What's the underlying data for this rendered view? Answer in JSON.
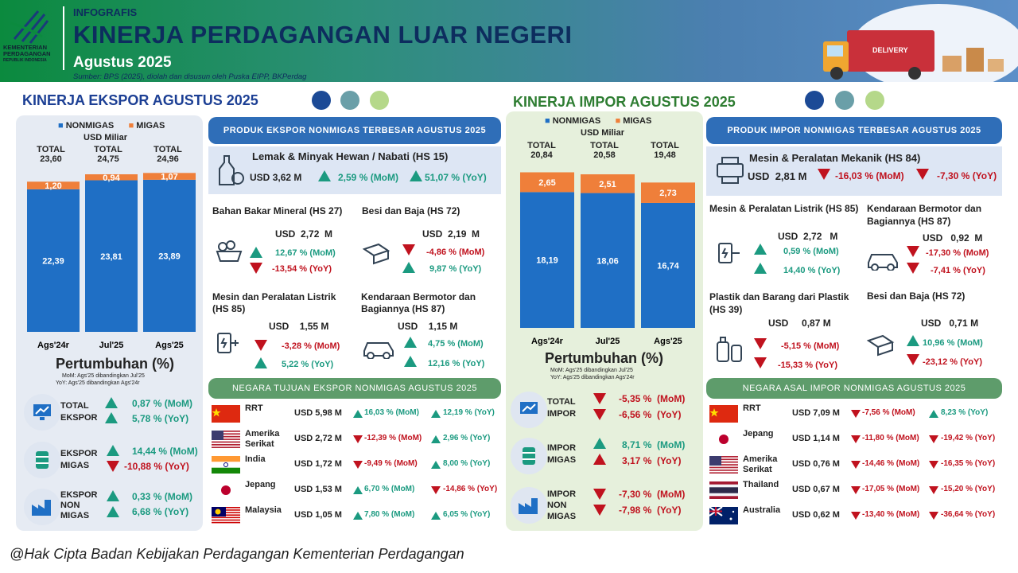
{
  "header": {
    "kicker": "INFOGRAFIS",
    "title": "KINERJA PERDAGANGAN LUAR NEGERI",
    "month": "Agustus 2025",
    "source": "Sumber: BPS (2025), diolah dan disusun oleh Puska EIPP, BKPerdag",
    "logo_line1": "KEMENTERIAN",
    "logo_line2": "PERDAGANGAN",
    "logo_line3": "REPUBLIK INDONESIA",
    "truck_text": "DELIVERY"
  },
  "export": {
    "title": "KINERJA EKSPOR AGUSTUS 2025",
    "legend_nonmigas": "NONMIGAS",
    "legend_migas": "MIGAS",
    "unit": "USD Miliar",
    "totals": [
      {
        "label": "TOTAL",
        "value": "23,60"
      },
      {
        "label": "TOTAL",
        "value": "24,75"
      },
      {
        "label": "TOTAL",
        "value": "24,96"
      }
    ],
    "growth_title": "Pertumbuhan (%)",
    "growth_note1": "MoM: Ags'25 dibandingkan Jul'25",
    "growth_note2": "YoY: Ags'25 dibandingkan Ags'24r",
    "growth": [
      {
        "label1": "TOTAL",
        "label2": "EKSPOR",
        "label3": "",
        "mom": "0,87 %",
        "mom_tag": "(MoM)",
        "yoy": "5,78 %",
        "yoy_tag": "(YoY)"
      },
      {
        "label1": "EKSPOR",
        "label2": "MIGAS",
        "label3": "",
        "mom": "14,44 %",
        "mom_tag": "(MoM)",
        "yoy": "-10,88 %",
        "yoy_tag": "(YoY)"
      },
      {
        "label1": "EKSPOR",
        "label2": "NON",
        "label3": "MIGAS",
        "mom": "0,33 %",
        "mom_tag": "(MoM)",
        "yoy": "6,68 %",
        "yoy_tag": "(YoY)"
      }
    ],
    "products_header": "PRODUK EKSPOR NONMIGAS TERBESAR AGUSTUS 2025",
    "top_product": {
      "name": "Lemak & Minyak Hewan / Nabati (HS 15)",
      "usd": "USD",
      "value": "3,62 M",
      "mom": "2,59 % (MoM)",
      "yoy": "51,07 % (YoY)"
    },
    "products": [
      {
        "name": "Bahan Bakar Mineral (HS 27)",
        "usd": "USD",
        "value": "2,72",
        "unit": "M",
        "mom": "12,67 % (MoM)",
        "yoy": "-13,54 % (YoY)"
      },
      {
        "name": "Besi dan Baja (HS 72)",
        "usd": "USD",
        "value": "2,19",
        "unit": "M",
        "mom": "-4,86 % (MoM)",
        "yoy": "9,87 % (YoY)"
      },
      {
        "name": "Mesin dan Peralatan Listrik (HS 85)",
        "usd": "USD",
        "value": "1,55",
        "unit": "M",
        "mom": "-3,28 % (MoM)",
        "yoy": "5,22 % (YoY)"
      },
      {
        "name": "Kendaraan Bermotor dan Bagiannya (HS 87)",
        "usd": "USD",
        "value": "1,15",
        "unit": "M",
        "mom": "4,75 % (MoM)",
        "yoy": "12,16 % (YoY)"
      }
    ],
    "countries_header": "NEGARA TUJUAN EKSPOR NONMIGAS AGUSTUS 2025",
    "countries": [
      {
        "name": "RRT",
        "value": "USD 5,98 M",
        "mom": "16,03 % (MoM)",
        "yoy": "12,19 % (YoY)"
      },
      {
        "name": "Amerika Serikat",
        "value": "USD 2,72 M",
        "mom": "-12,39 % (MoM)",
        "yoy": "2,96 % (YoY)"
      },
      {
        "name": "India",
        "value": "USD 1,72 M",
        "mom": "-9,49 % (MoM)",
        "yoy": "8,00 % (YoY)"
      },
      {
        "name": "Jepang",
        "value": "USD 1,53 M",
        "mom": "6,70 % (MoM)",
        "yoy": "-14,86 % (YoY)"
      },
      {
        "name": "Malaysia",
        "value": "USD 1,05 M",
        "mom": "7,80 % (MoM)",
        "yoy": "6,05 % (YoY)"
      }
    ]
  },
  "import": {
    "title": "KINERJA IMPOR AGUSTUS 2025",
    "legend_nonmigas": "NONMIGAS",
    "legend_migas": "MIGAS",
    "unit": "USD Miliar",
    "totals": [
      {
        "label": "TOTAL",
        "value": "20,84"
      },
      {
        "label": "TOTAL",
        "value": "20,58"
      },
      {
        "label": "TOTAL",
        "value": "19,48"
      }
    ],
    "growth_title": "Pertumbuhan (%)",
    "growth_note1": "MoM: Ags'25 dibandingkan Jul'25",
    "growth_note2": "YoY: Ags'25 dibandingkan Ags'24r",
    "growth": [
      {
        "label1": "TOTAL",
        "label2": "IMPOR",
        "label3": "",
        "mom": "-5,35 %",
        "mom_tag": "(MoM)",
        "yoy": "-6,56 %",
        "yoy_tag": "(YoY)"
      },
      {
        "label1": "IMPOR",
        "label2": "MIGAS",
        "label3": "",
        "mom": "8,71 %",
        "mom_tag": "(MoM)",
        "yoy": "3,17 %",
        "yoy_tag": "(YoY)"
      },
      {
        "label1": "IMPOR",
        "label2": "NON",
        "label3": "MIGAS",
        "mom": "-7,30 %",
        "mom_tag": "(MoM)",
        "yoy": "-7,98 %",
        "yoy_tag": "(YoY)"
      }
    ],
    "products_header": "PRODUK IMPOR NONMIGAS TERBESAR AGUSTUS 2025",
    "top_product": {
      "name": "Mesin & Peralatan Mekanik (HS 84)",
      "usd": "USD",
      "value": "2,81 M",
      "mom": "-16,03 % (MoM)",
      "yoy": "-7,30 % (YoY)"
    },
    "products": [
      {
        "name": "Mesin & Peralatan Listrik (HS 85)",
        "usd": "USD",
        "value": "2,72",
        "unit": "M",
        "mom": "0,59 % (MoM)",
        "yoy": "14,40 % (YoY)"
      },
      {
        "name": "Kendaraan Bermotor dan Bagiannya (HS 87)",
        "usd": "USD",
        "value": "0,92",
        "unit": "M",
        "mom": "-17,30 % (MoM)",
        "yoy": "-7,41 % (YoY)"
      },
      {
        "name": "Plastik dan Barang dari Plastik (HS 39)",
        "usd": "USD",
        "value": "0,87",
        "unit": "M",
        "mom": "-5,15 % (MoM)",
        "yoy": "-15,33 % (YoY)"
      },
      {
        "name": "Besi dan Baja (HS 72)",
        "usd": "USD",
        "value": "0,71",
        "unit": "M",
        "mom": "10,96 % (MoM)",
        "yoy": "-23,12 % (YoY)"
      }
    ],
    "countries_header": "NEGARA ASAL IMPOR NONMIGAS AGUSTUS 2025",
    "countries": [
      {
        "name": "RRT",
        "value": "USD 7,09 M",
        "mom": "-7,56 % (MoM)",
        "yoy": "8,23 % (YoY)"
      },
      {
        "name": "Jepang",
        "value": "USD 1,14 M",
        "mom": "-11,80 % (MoM)",
        "yoy": "-19,42 % (YoY)"
      },
      {
        "name": "Amerika Serikat",
        "value": "USD 0,76 M",
        "mom": "-14,46 % (MoM)",
        "yoy": "-16,35 % (YoY)"
      },
      {
        "name": "Thailand",
        "value": "USD 0,67 M",
        "mom": "-17,05 % (MoM)",
        "yoy": "-15,20 % (YoY)"
      },
      {
        "name": "Australia",
        "value": "USD 0,62 M",
        "mom": "-13,40 % (MoM)",
        "yoy": "-36,64 % (YoY)"
      }
    ]
  },
  "footer": "@Hak Cipta Badan Kebijakan Perdagangan Kementerian Perdagangan",
  "colors": {
    "nonmigas": "#1f6fc5",
    "migas": "#ef7f3a",
    "up": "#1b9a80",
    "down": "#c0121e",
    "export_title": "#1c3f94",
    "import_title": "#2e7d32"
  },
  "chart_data": [
    {
      "type": "bar",
      "stacked": true,
      "title": "",
      "unit": "USD Miliar",
      "categories": [
        "Ags'24r",
        "Jul'25",
        "Ags'25"
      ],
      "series": [
        {
          "name": "NONMIGAS",
          "values": [
            22.39,
            23.81,
            23.89
          ],
          "labels": [
            "22,39",
            "23,81",
            "23,89"
          ]
        },
        {
          "name": "MIGAS",
          "values": [
            1.2,
            0.94,
            1.07
          ],
          "labels": [
            "1,20",
            "0,94",
            "1,07"
          ]
        }
      ],
      "ylim": [
        0,
        25
      ]
    },
    {
      "type": "bar",
      "stacked": true,
      "title": "",
      "unit": "USD Miliar",
      "categories": [
        "Ags'24r",
        "Jul'25",
        "Ags'25"
      ],
      "series": [
        {
          "name": "NONMIGAS",
          "values": [
            18.19,
            18.06,
            16.74
          ],
          "labels": [
            "18,19",
            "18,06",
            "16,74"
          ]
        },
        {
          "name": "MIGAS",
          "values": [
            2.65,
            2.51,
            2.73
          ],
          "labels": [
            "2,65",
            "2,51",
            "2,73"
          ]
        }
      ],
      "ylim": [
        0,
        21
      ]
    }
  ]
}
